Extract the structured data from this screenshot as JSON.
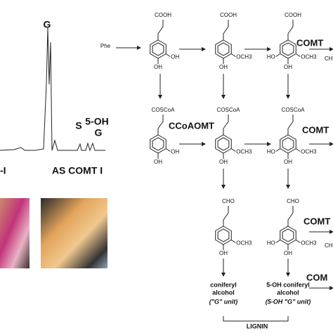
{
  "chromatogram": {
    "peak_labels": [
      "G",
      "S",
      "5-OH",
      "G"
    ],
    "captions": [
      "-I",
      "AS COMT I"
    ]
  },
  "pathway": {
    "start": "Phe",
    "structures": [
      {
        "group": "COOH",
        "substituents": [
          "OH",
          "OH"
        ]
      },
      {
        "group": "COOH",
        "substituents": [
          "OCH3",
          "OH"
        ]
      },
      {
        "group": "COOH",
        "substituents": [
          "HO",
          "OCH3",
          "OH"
        ]
      },
      {
        "group": "COSCoA",
        "substituents": [
          "OH",
          "OH"
        ]
      },
      {
        "group": "COSCoA",
        "substituents": [
          "OCH3",
          "OH"
        ]
      },
      {
        "group": "COSCoA",
        "substituents": [
          "HO",
          "OCH3",
          "OH"
        ]
      },
      {
        "group": "CHO",
        "substituents": [
          "OCH3",
          "OH"
        ]
      },
      {
        "group": "CHO",
        "substituents": [
          "HO",
          "OCH3",
          "OH"
        ]
      }
    ],
    "enzymes": [
      "COMT",
      "CCoAOMT",
      "COMT",
      "COMT",
      "COM"
    ],
    "cut_labels": [
      "CH",
      "CH"
    ],
    "products": [
      {
        "name": [
          "coniferyl",
          "alcohol"
        ],
        "unit": "(\"G\" unit)"
      },
      {
        "name": [
          "5-OH coniferyl",
          "alcohol"
        ],
        "unit": "(5-OH \"G\" unit)"
      }
    ],
    "polymer": "LIGNIN"
  }
}
